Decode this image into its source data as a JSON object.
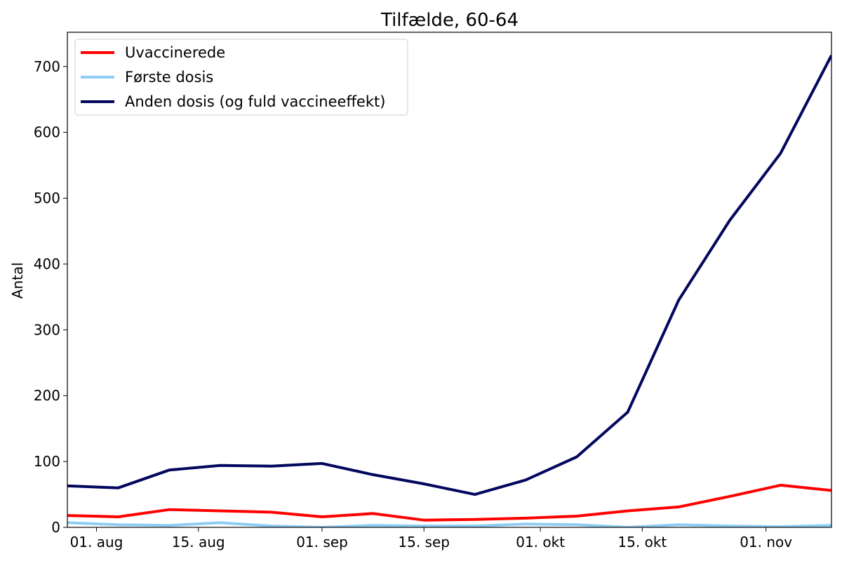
{
  "chart_data": {
    "type": "line",
    "title": "Tilfælde, 60-64",
    "xlabel": "",
    "ylabel": "Antal",
    "x": [
      "2021-07-28",
      "2021-08-04",
      "2021-08-11",
      "2021-08-18",
      "2021-08-25",
      "2021-09-01",
      "2021-09-08",
      "2021-09-15",
      "2021-09-22",
      "2021-09-29",
      "2021-10-06",
      "2021-10-13",
      "2021-10-20",
      "2021-10-27",
      "2021-11-03",
      "2021-11-10"
    ],
    "xlim": [
      "2021-07-28",
      "2021-11-10"
    ],
    "xticks": [
      {
        "date": "2021-08-01",
        "label": "01. aug"
      },
      {
        "date": "2021-08-15",
        "label": "15. aug"
      },
      {
        "date": "2021-09-01",
        "label": "01. sep"
      },
      {
        "date": "2021-09-15",
        "label": "15. sep"
      },
      {
        "date": "2021-10-01",
        "label": "01. okt"
      },
      {
        "date": "2021-10-15",
        "label": "15. okt"
      },
      {
        "date": "2021-11-01",
        "label": "01. nov"
      }
    ],
    "ylim": [
      0,
      752
    ],
    "yticks": [
      0,
      100,
      200,
      300,
      400,
      500,
      600,
      700
    ],
    "grid": false,
    "legend_position": "top-left",
    "series": [
      {
        "name": "Uvaccinerede",
        "color": "#ff0000",
        "values": [
          18,
          16,
          27,
          25,
          23,
          16,
          21,
          11,
          12,
          14,
          17,
          25,
          31,
          47,
          64,
          56
        ]
      },
      {
        "name": "Første dosis",
        "color": "#8fcdf5",
        "values": [
          7,
          4,
          3,
          7,
          2,
          0,
          3,
          2,
          2,
          5,
          4,
          0,
          4,
          2,
          1,
          3
        ]
      },
      {
        "name": "Anden dosis (og fuld vaccineeffekt)",
        "color": "#02075d",
        "values": [
          63,
          60,
          87,
          94,
          93,
          97,
          80,
          66,
          50,
          72,
          107,
          175,
          345,
          466,
          568,
          717
        ]
      }
    ]
  }
}
